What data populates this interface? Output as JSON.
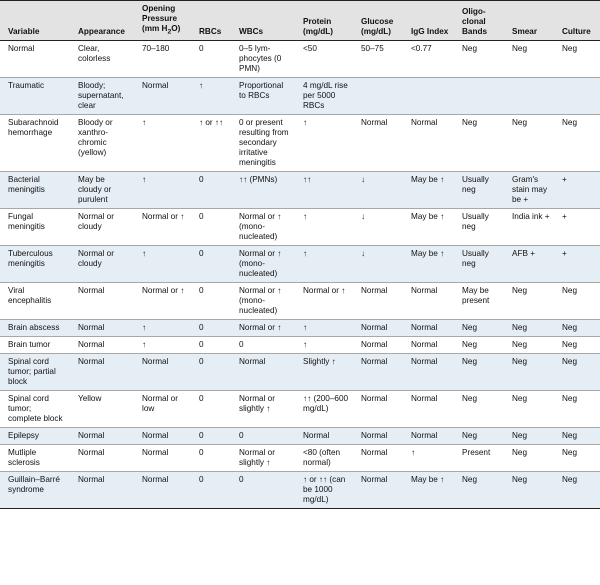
{
  "header": {
    "variable": "Variable",
    "appearance": "Appearance",
    "pressure_line1": "Opening",
    "pressure_line2": "Pressure",
    "pressure_line3_pre": "(mm H",
    "pressure_sub": "2",
    "pressure_line3_post": "O)",
    "rbcs": "RBCs",
    "wbcs": "WBCs",
    "protein": "Protein (mg/dL)",
    "glucose": "Glucose (mg/dL)",
    "igg": "IgG Index",
    "bands": "Oligo-clonal Bands",
    "smear": "Smear",
    "culture": "Culture"
  },
  "rows": [
    {
      "variable": "Normal",
      "appearance": "Clear, colorless",
      "pressure": "70–180",
      "rbcs": "0",
      "wbcs": "0–5 lym-phocytes (0 PMN)",
      "protein": "<50",
      "glucose": "50–75",
      "igg": "<0.77",
      "bands": "Neg",
      "smear": "Neg",
      "culture": "Neg"
    },
    {
      "variable": "Traumatic",
      "appearance": "Bloody; supernatant, clear",
      "pressure": "Normal",
      "rbcs": "↑",
      "wbcs": "Proportional to RBCs",
      "protein": "4 mg/dL rise per 5000 RBCs",
      "glucose": "",
      "igg": "",
      "bands": "",
      "smear": "",
      "culture": ""
    },
    {
      "variable": "Subarachnoid hemorrhage",
      "appearance": "Bloody or xanthro-chromic (yellow)",
      "pressure": "↑",
      "rbcs": "↑ or ↑↑",
      "wbcs": "0 or present resulting from secondary irritative meningitis",
      "protein": "↑",
      "glucose": "Normal",
      "igg": "Normal",
      "bands": "Neg",
      "smear": "Neg",
      "culture": "Neg"
    },
    {
      "variable": "Bacterial meningitis",
      "appearance": "May be cloudy or purulent",
      "pressure": "↑",
      "rbcs": "0",
      "wbcs": "↑↑ (PMNs)",
      "protein": "↑↑",
      "glucose": "↓",
      "igg": "May be ↑",
      "bands": "Usually neg",
      "smear": "Gram's stain may be +",
      "culture": "+"
    },
    {
      "variable": "Fungal meningitis",
      "appearance": "Normal or cloudy",
      "pressure": "Normal or ↑",
      "rbcs": "0",
      "wbcs": "Normal or ↑ (mono-nucleated)",
      "protein": "↑",
      "glucose": "↓",
      "igg": "May be ↑",
      "bands": "Usually neg",
      "smear": "India ink +",
      "culture": "+"
    },
    {
      "variable": "Tuberculous meningitis",
      "appearance": "Normal or cloudy",
      "pressure": "↑",
      "rbcs": "0",
      "wbcs": "Normal or ↑ (mono-nucleated)",
      "protein": "↑",
      "glucose": "↓",
      "igg": "May be ↑",
      "bands": "Usually neg",
      "smear": "AFB +",
      "culture": "+"
    },
    {
      "variable": "Viral encephalitis",
      "appearance": "Normal",
      "pressure": "Normal or ↑",
      "rbcs": "0",
      "wbcs": "Normal or ↑ (mono-nucleated)",
      "protein": "Normal or ↑",
      "glucose": "Normal",
      "igg": "Normal",
      "bands": "May be present",
      "smear": "Neg",
      "culture": "Neg"
    },
    {
      "variable": "Brain abscess",
      "appearance": "Normal",
      "pressure": "↑",
      "rbcs": "0",
      "wbcs": "Normal or ↑",
      "protein": "↑",
      "glucose": "Normal",
      "igg": "Normal",
      "bands": "Neg",
      "smear": "Neg",
      "culture": "Neg"
    },
    {
      "variable": "Brain tumor",
      "appearance": "Normal",
      "pressure": "↑",
      "rbcs": "0",
      "wbcs": "0",
      "protein": "↑",
      "glucose": "Normal",
      "igg": "Normal",
      "bands": "Neg",
      "smear": "Neg",
      "culture": "Neg"
    },
    {
      "variable": "Spinal cord tumor; partial block",
      "appearance": "Normal",
      "pressure": "Normal",
      "rbcs": "0",
      "wbcs": "Normal",
      "protein": "Slightly ↑",
      "glucose": "Normal",
      "igg": "Normal",
      "bands": "Neg",
      "smear": "Neg",
      "culture": "Neg"
    },
    {
      "variable": "Spinal cord tumor; complete block",
      "appearance": "Yellow",
      "pressure": "Normal or low",
      "rbcs": "0",
      "wbcs": "Normal or slightly ↑",
      "protein": "↑↑ (200–600 mg/dL)",
      "glucose": "Normal",
      "igg": "Normal",
      "bands": "Neg",
      "smear": "Neg",
      "culture": "Neg"
    },
    {
      "variable": "Epilepsy",
      "appearance": "Normal",
      "pressure": "Normal",
      "rbcs": "0",
      "wbcs": "0",
      "protein": "Normal",
      "glucose": "Normal",
      "igg": "Normal",
      "bands": "Neg",
      "smear": "Neg",
      "culture": "Neg"
    },
    {
      "variable": "Mutliple sclerosis",
      "appearance": "Normal",
      "pressure": "Normal",
      "rbcs": "0",
      "wbcs": "Normal or slightly ↑",
      "protein": "<80 (often normal)",
      "glucose": "Normal",
      "igg": "↑",
      "bands": "Present",
      "smear": "Neg",
      "culture": "Neg"
    },
    {
      "variable": "Guillain–Barré syndrome",
      "appearance": "Normal",
      "pressure": "Normal",
      "rbcs": "0",
      "wbcs": "0",
      "protein": "↑ or ↑↑ (can be 1000 mg/dL)",
      "glucose": "Normal",
      "igg": "May be ↑",
      "bands": "Neg",
      "smear": "Neg",
      "culture": "Neg"
    }
  ]
}
